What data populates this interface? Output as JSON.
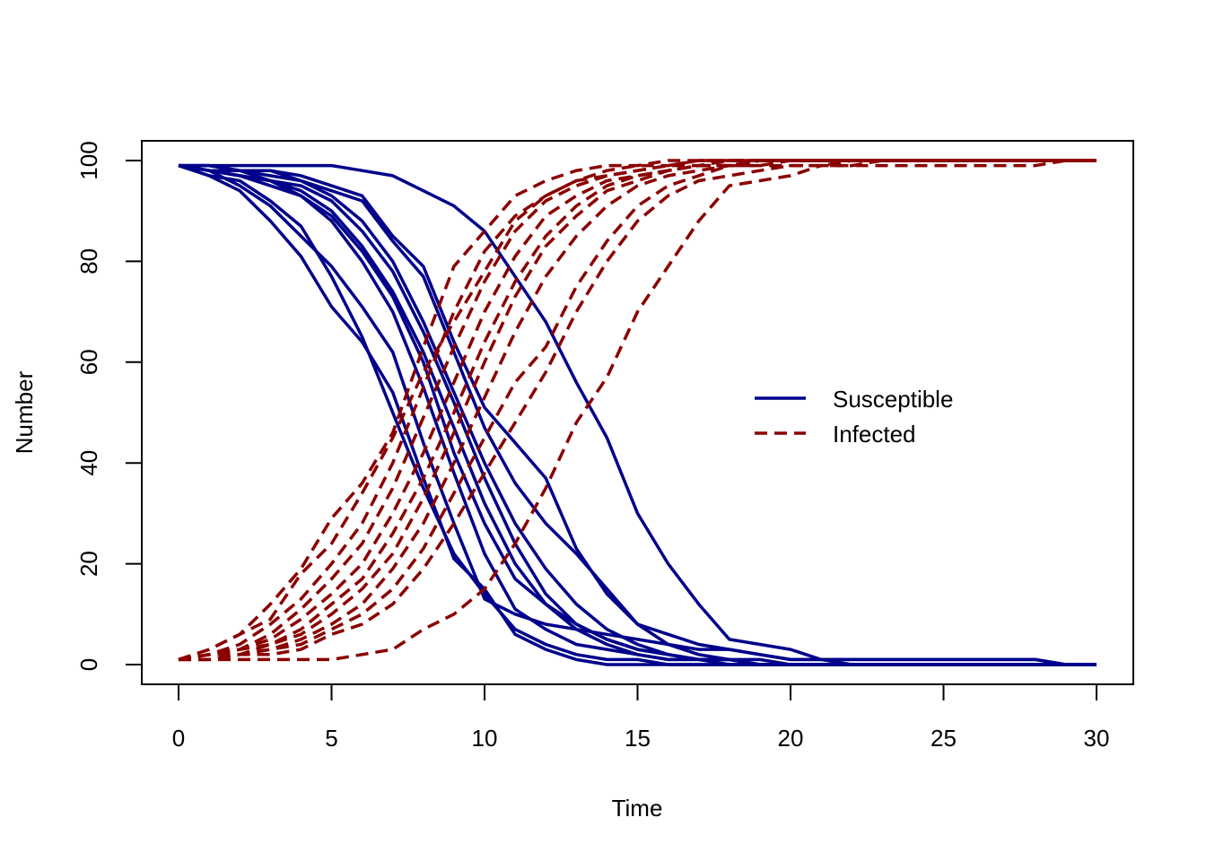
{
  "chart_data": {
    "type": "line",
    "title": "",
    "xlabel": "Time",
    "ylabel": "Number",
    "xlim": [
      0,
      30
    ],
    "ylim": [
      0,
      100
    ],
    "x_ticks": [
      0,
      5,
      10,
      15,
      20,
      25,
      30
    ],
    "y_ticks": [
      0,
      20,
      40,
      60,
      80,
      100
    ],
    "grid": false,
    "legend": {
      "placement": "right",
      "entries": [
        {
          "label": "Susceptible",
          "color": "#00008B",
          "style": "solid"
        },
        {
          "label": "Infected",
          "color": "#8B0000",
          "style": "dashed"
        }
      ]
    },
    "colors": {
      "susceptible": "#00008B",
      "infected": "#8B0000"
    },
    "x": [
      0,
      1,
      2,
      3,
      4,
      5,
      6,
      7,
      8,
      9,
      10,
      11,
      12,
      13,
      14,
      15,
      16,
      17,
      18,
      19,
      20,
      21,
      22,
      23,
      24,
      25,
      26,
      27,
      28,
      29,
      30
    ],
    "series": [
      {
        "group": "susceptible",
        "values": [
          99,
          97,
          96,
          92,
          87,
          77,
          65,
          50,
          35,
          22,
          14,
          7,
          4,
          2,
          1,
          1,
          0,
          0,
          0,
          0,
          0,
          0,
          0,
          0,
          0,
          0,
          0,
          0,
          0,
          0,
          0
        ]
      },
      {
        "group": "susceptible",
        "values": [
          99,
          97,
          94,
          88,
          81,
          71,
          64,
          54,
          37,
          21,
          15,
          6,
          3,
          1,
          0,
          0,
          0,
          0,
          0,
          0,
          0,
          0,
          0,
          0,
          0,
          0,
          0,
          0,
          0,
          0,
          0
        ]
      },
      {
        "group": "susceptible",
        "values": [
          99,
          98,
          95,
          91,
          85,
          79,
          71,
          62,
          44,
          28,
          13,
          10,
          8,
          7,
          6,
          5,
          4,
          3,
          3,
          2,
          1,
          1,
          1,
          1,
          1,
          1,
          1,
          1,
          1,
          0,
          0
        ]
      },
      {
        "group": "susceptible",
        "values": [
          99,
          98,
          97,
          95,
          93,
          88,
          80,
          70,
          55,
          38,
          22,
          11,
          7,
          4,
          3,
          2,
          1,
          1,
          1,
          0,
          0,
          0,
          0,
          0,
          0,
          0,
          0,
          0,
          0,
          0,
          0
        ]
      },
      {
        "group": "susceptible",
        "values": [
          99,
          98,
          98,
          96,
          93,
          89,
          82,
          73,
          60,
          42,
          28,
          17,
          12,
          8,
          5,
          3,
          2,
          1,
          1,
          0,
          0,
          0,
          0,
          0,
          0,
          0,
          0,
          0,
          0,
          0,
          0
        ]
      },
      {
        "group": "susceptible",
        "values": [
          99,
          98,
          97,
          96,
          94,
          90,
          83,
          74,
          62,
          47,
          32,
          20,
          12,
          7,
          4,
          2,
          1,
          1,
          0,
          0,
          0,
          0,
          0,
          0,
          0,
          0,
          0,
          0,
          0,
          0,
          0
        ]
      },
      {
        "group": "susceptible",
        "values": [
          99,
          98,
          97,
          96,
          95,
          92,
          86,
          78,
          66,
          52,
          37,
          24,
          14,
          8,
          5,
          3,
          2,
          1,
          1,
          0,
          0,
          0,
          0,
          0,
          0,
          0,
          0,
          0,
          0,
          0,
          0
        ]
      },
      {
        "group": "susceptible",
        "values": [
          99,
          98,
          98,
          97,
          96,
          93,
          88,
          80,
          68,
          54,
          40,
          28,
          19,
          12,
          7,
          4,
          2,
          1,
          1,
          0,
          0,
          0,
          0,
          0,
          0,
          0,
          0,
          0,
          0,
          0,
          0
        ]
      },
      {
        "group": "susceptible",
        "values": [
          99,
          99,
          98,
          98,
          96,
          94,
          92,
          84,
          77,
          62,
          47,
          36,
          28,
          22,
          15,
          8,
          4,
          2,
          1,
          1,
          0,
          0,
          0,
          0,
          0,
          0,
          0,
          0,
          0,
          0,
          0
        ]
      },
      {
        "group": "susceptible",
        "values": [
          99,
          99,
          98,
          98,
          97,
          95,
          93,
          85,
          79,
          64,
          51,
          44,
          37,
          23,
          14,
          8,
          6,
          4,
          3,
          2,
          1,
          1,
          0,
          0,
          0,
          0,
          0,
          0,
          0,
          0,
          0
        ]
      },
      {
        "group": "susceptible",
        "values": [
          99,
          99,
          99,
          99,
          99,
          99,
          98,
          97,
          94,
          91,
          86,
          77,
          68,
          56,
          45,
          30,
          20,
          12,
          5,
          4,
          3,
          1,
          1,
          1,
          1,
          1,
          1,
          1,
          1,
          0,
          0
        ]
      },
      {
        "group": "infected",
        "values": [
          1,
          3,
          6,
          12,
          19,
          29,
          36,
          46,
          63,
          79,
          86,
          93,
          96,
          98,
          99,
          99,
          100,
          100,
          100,
          100,
          100,
          100,
          100,
          100,
          100,
          100,
          100,
          100,
          100,
          100,
          100
        ]
      },
      {
        "group": "infected",
        "values": [
          1,
          3,
          6,
          9,
          18,
          24,
          34,
          45,
          58,
          68,
          78,
          88,
          93,
          96,
          98,
          99,
          99,
          100,
          100,
          100,
          100,
          100,
          100,
          100,
          100,
          100,
          100,
          100,
          100,
          100,
          100
        ]
      },
      {
        "group": "infected",
        "values": [
          1,
          2,
          4,
          8,
          13,
          20,
          28,
          40,
          55,
          70,
          82,
          89,
          93,
          96,
          97,
          98,
          99,
          99,
          100,
          100,
          100,
          100,
          100,
          100,
          100,
          100,
          100,
          100,
          100,
          100,
          100
        ]
      },
      {
        "group": "infected",
        "values": [
          1,
          2,
          3,
          6,
          11,
          17,
          24,
          35,
          49,
          63,
          76,
          86,
          92,
          95,
          97,
          98,
          99,
          100,
          100,
          100,
          100,
          100,
          100,
          100,
          100,
          100,
          100,
          100,
          100,
          100,
          100
        ]
      },
      {
        "group": "infected",
        "values": [
          1,
          2,
          3,
          5,
          9,
          14,
          20,
          30,
          42,
          56,
          70,
          81,
          89,
          93,
          96,
          97,
          98,
          99,
          99,
          100,
          100,
          100,
          100,
          100,
          100,
          100,
          100,
          100,
          100,
          100,
          100
        ]
      },
      {
        "group": "infected",
        "values": [
          1,
          2,
          3,
          4,
          7,
          12,
          17,
          26,
          37,
          50,
          64,
          76,
          85,
          91,
          95,
          97,
          98,
          99,
          99,
          100,
          100,
          100,
          100,
          100,
          100,
          100,
          100,
          100,
          100,
          100,
          100
        ]
      },
      {
        "group": "infected",
        "values": [
          1,
          2,
          2,
          4,
          6,
          10,
          15,
          22,
          33,
          46,
          60,
          73,
          83,
          89,
          94,
          96,
          98,
          99,
          99,
          100,
          100,
          100,
          100,
          100,
          100,
          100,
          100,
          100,
          100,
          100,
          100
        ]
      },
      {
        "group": "infected",
        "values": [
          1,
          2,
          2,
          3,
          5,
          8,
          12,
          19,
          28,
          40,
          53,
          66,
          77,
          85,
          91,
          95,
          97,
          98,
          99,
          99,
          100,
          100,
          100,
          100,
          100,
          100,
          100,
          100,
          100,
          100,
          100
        ]
      },
      {
        "group": "infected",
        "values": [
          1,
          1,
          2,
          3,
          4,
          7,
          10,
          15,
          23,
          34,
          45,
          56,
          63,
          75,
          84,
          91,
          95,
          97,
          99,
          99,
          99,
          99,
          100,
          100,
          100,
          100,
          100,
          100,
          100,
          100,
          100
        ]
      },
      {
        "group": "infected",
        "values": [
          1,
          1,
          2,
          2,
          3,
          6,
          8,
          12,
          19,
          28,
          38,
          48,
          58,
          70,
          80,
          88,
          93,
          96,
          97,
          98,
          99,
          99,
          99,
          100,
          100,
          100,
          100,
          100,
          100,
          100,
          100
        ]
      },
      {
        "group": "infected",
        "values": [
          1,
          1,
          1,
          1,
          1,
          1,
          2,
          3,
          7,
          10,
          15,
          24,
          35,
          48,
          57,
          70,
          79,
          88,
          95,
          96,
          97,
          99,
          99,
          99,
          99,
          99,
          99,
          99,
          99,
          100,
          100
        ]
      }
    ]
  }
}
